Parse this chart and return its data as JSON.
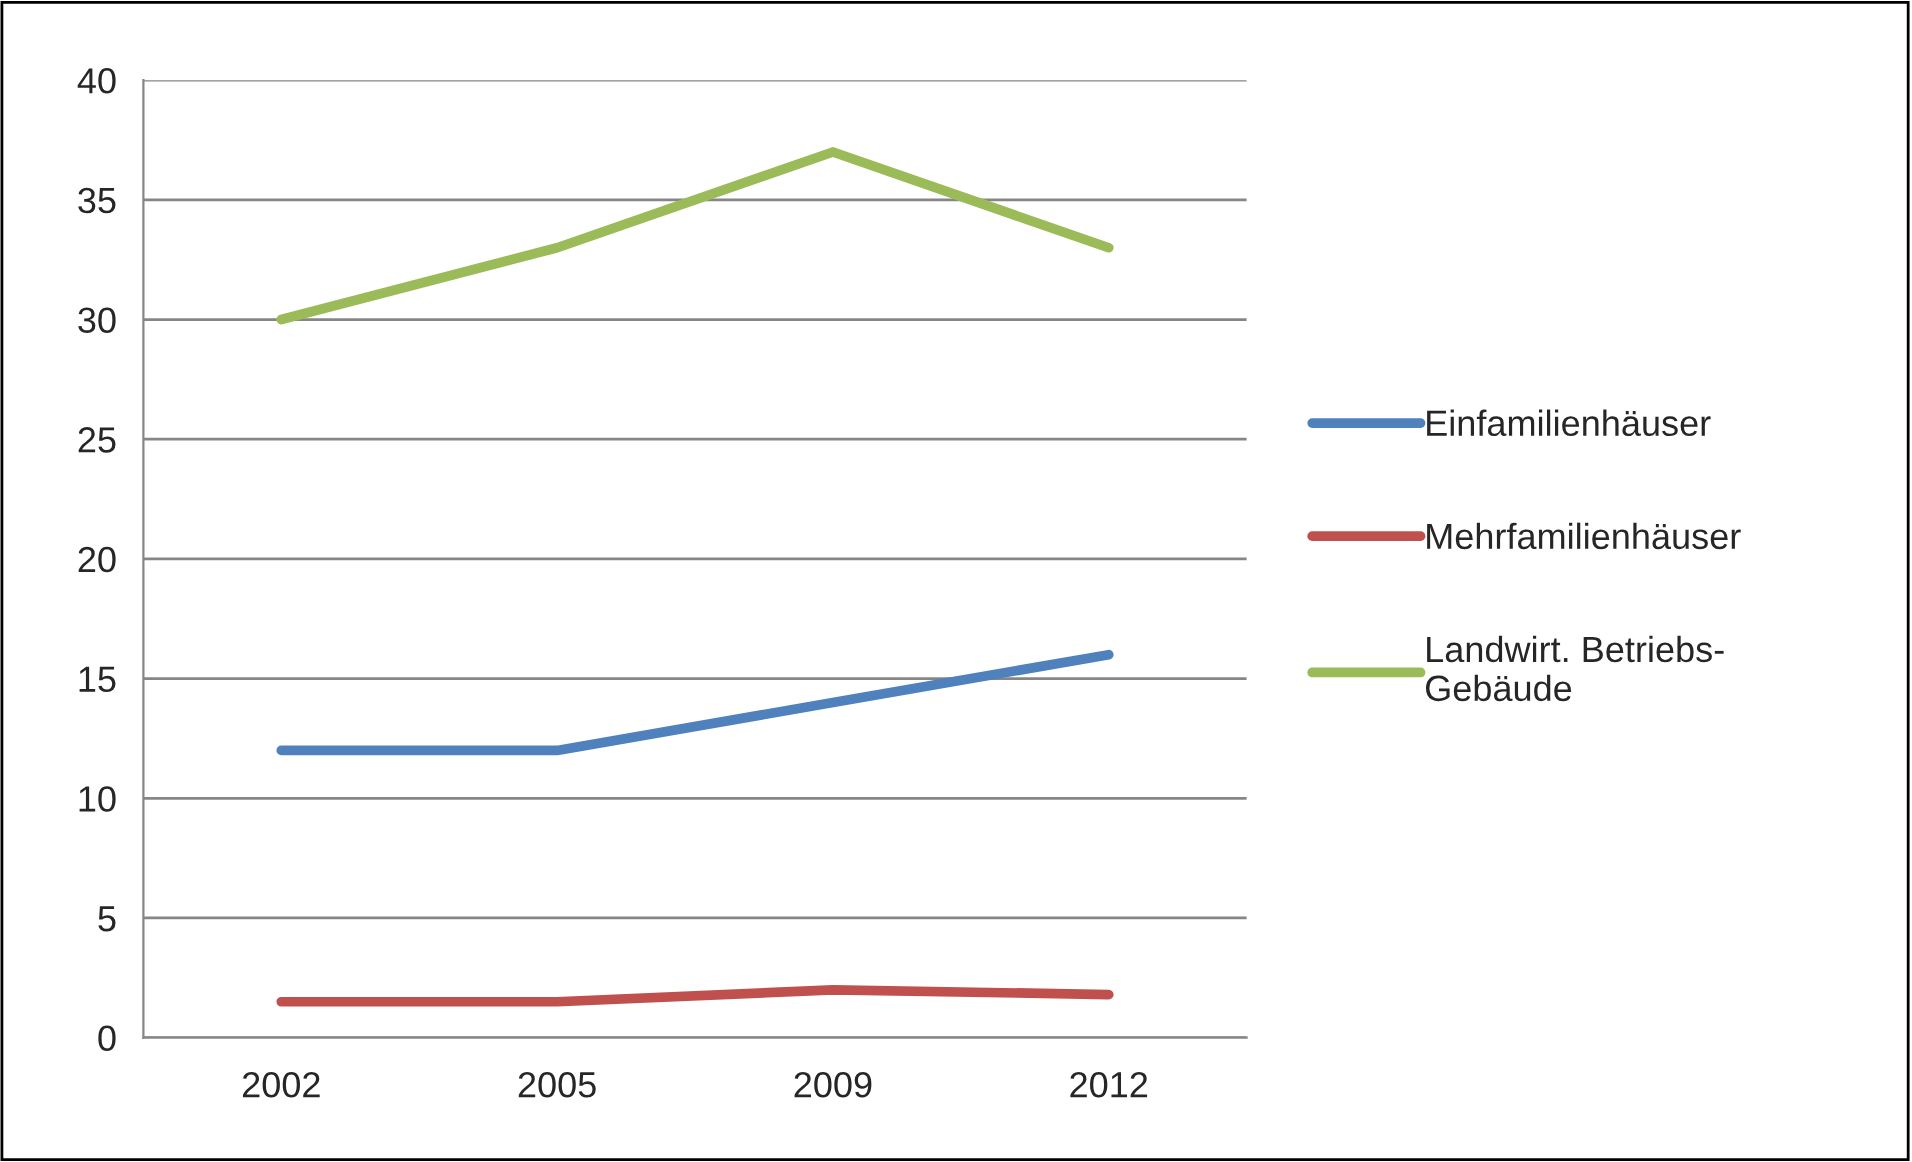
{
  "chart_data": {
    "type": "line",
    "categories": [
      "2002",
      "2005",
      "2009",
      "2012"
    ],
    "series": [
      {
        "name": "Einfamilienhäuser",
        "color": "#4f81bd",
        "values": [
          12,
          12,
          14,
          16
        ]
      },
      {
        "name": "Mehrfamilienhäuser",
        "color": "#c0504d",
        "values": [
          1.5,
          1.5,
          2,
          1.8
        ]
      },
      {
        "name": "Landwirt. Betriebs-\nGebäude",
        "color": "#9bbb59",
        "values": [
          30,
          33,
          37,
          33
        ]
      }
    ],
    "ylim": [
      0,
      40
    ],
    "yticks": [
      0,
      5,
      10,
      15,
      20,
      25,
      30,
      35,
      40
    ],
    "grid": "y",
    "legend": "right",
    "marker": "none",
    "line_style": "solid"
  }
}
